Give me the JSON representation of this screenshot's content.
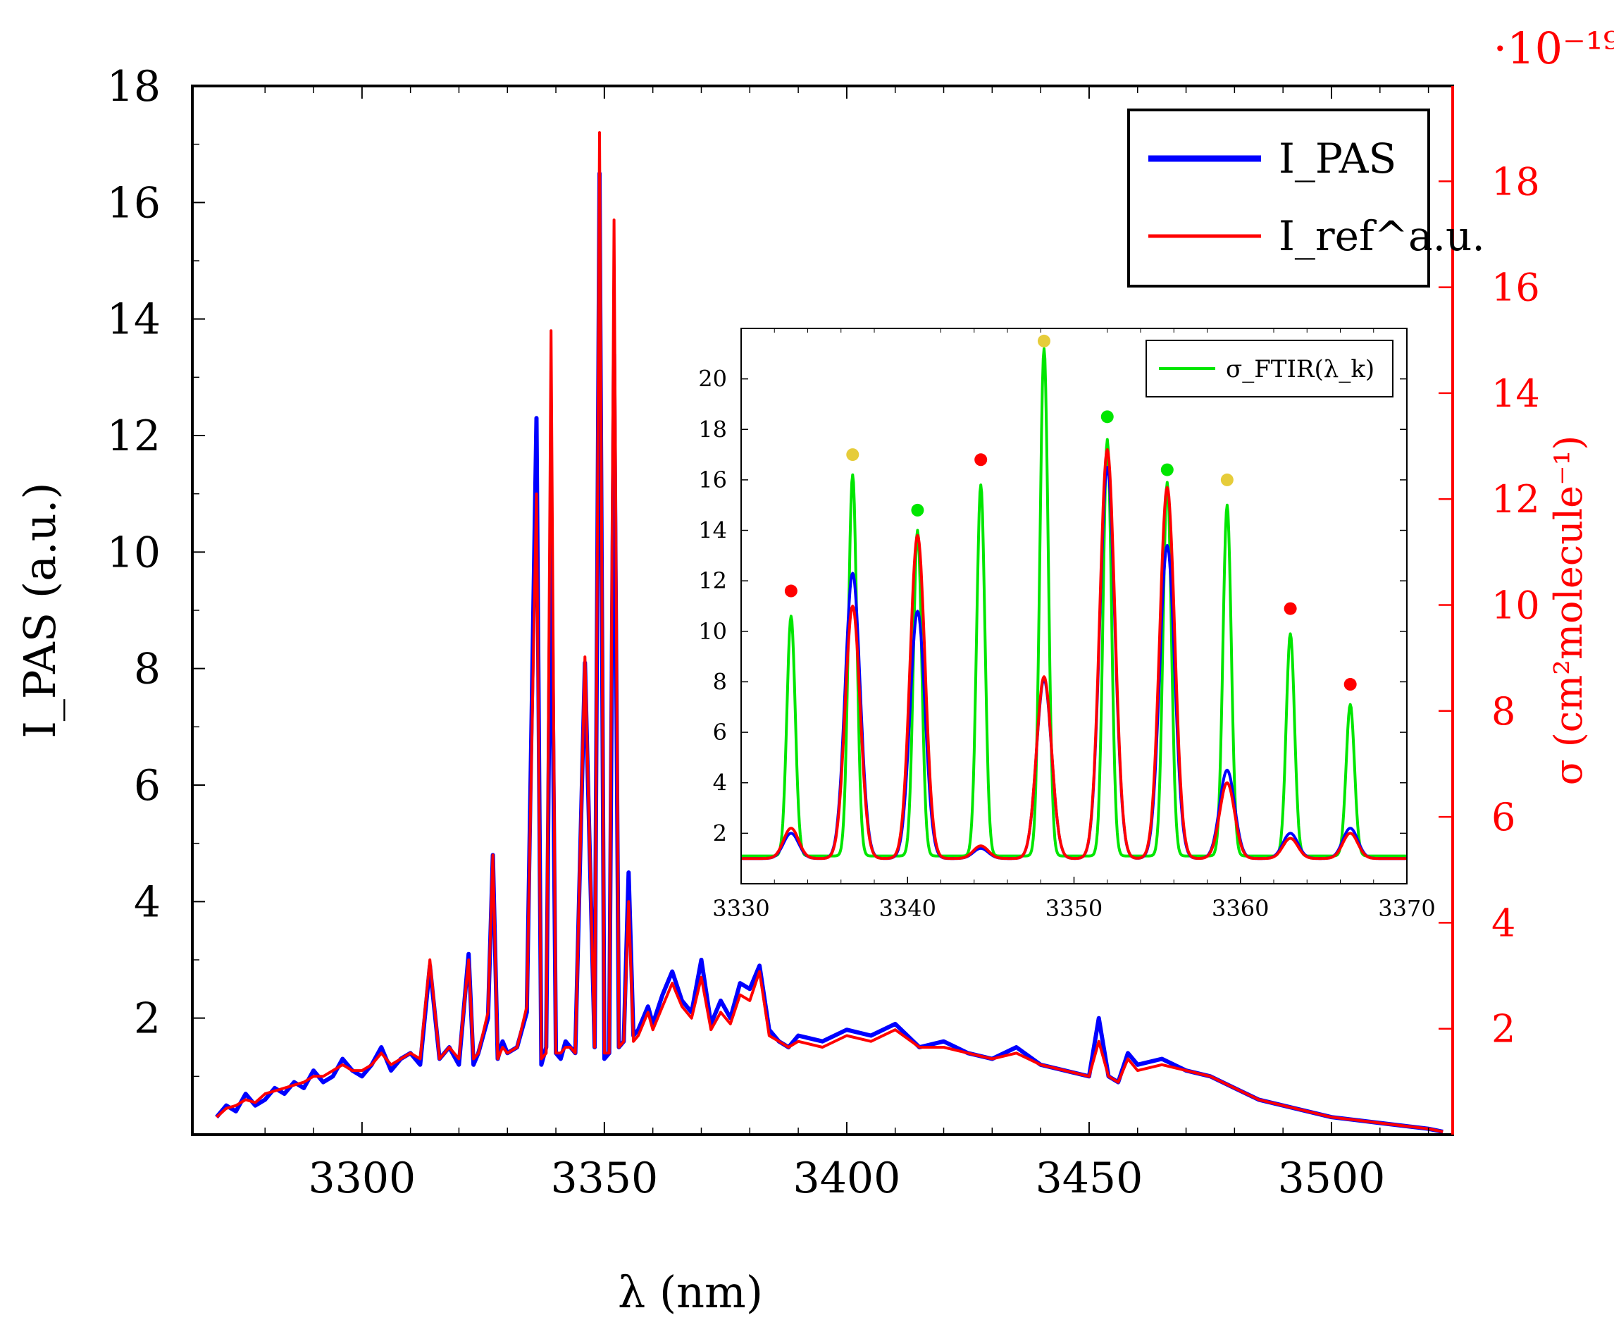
{
  "chart_data": [
    {
      "id": "main",
      "type": "line",
      "xlabel": "λ (nm)",
      "ylabel": "I_PAS (a.u.)",
      "ylabel_right": "σ (cm²molecule⁻¹)",
      "ylabel_right_multiplier": "·10⁻¹⁹",
      "xlim": [
        3265,
        3525
      ],
      "ylim": [
        0,
        18
      ],
      "ylim_right": [
        0,
        19.8
      ],
      "x_ticks": [
        3300,
        3350,
        3400,
        3450,
        3500
      ],
      "y_ticks": [
        2,
        4,
        6,
        8,
        10,
        12,
        14,
        16,
        18
      ],
      "y_right_ticks": [
        2,
        4,
        6,
        8,
        10,
        12,
        14,
        16,
        18
      ],
      "right_axis_color": "#ff0000",
      "legend": {
        "position": "top-right",
        "entries": [
          {
            "name": "I_PAS",
            "color": "#0000ff"
          },
          {
            "name": "I_ref^a.u.",
            "color": "#ff0000"
          }
        ]
      },
      "series": [
        {
          "name": "I_PAS",
          "color": "#0000ff",
          "x": [
            3270,
            3272,
            3274,
            3276,
            3278,
            3280,
            3282,
            3284,
            3286,
            3288,
            3290,
            3292,
            3294,
            3296,
            3298,
            3300,
            3302,
            3304,
            3306,
            3308,
            3310,
            3312,
            3314,
            3316,
            3318,
            3320,
            3322,
            3323,
            3324,
            3326,
            3327,
            3328,
            3329,
            3330,
            3332,
            3334,
            3336,
            3337,
            3338,
            3339,
            3340,
            3341,
            3342,
            3343,
            3344,
            3346,
            3348,
            3349,
            3350,
            3351,
            3352,
            3353,
            3354,
            3355,
            3356,
            3357,
            3358,
            3359,
            3360,
            3362,
            3364,
            3366,
            3368,
            3370,
            3372,
            3374,
            3376,
            3378,
            3380,
            3382,
            3384,
            3386,
            3388,
            3390,
            3395,
            3400,
            3405,
            3410,
            3415,
            3420,
            3425,
            3430,
            3435,
            3440,
            3445,
            3450,
            3452,
            3454,
            3456,
            3458,
            3460,
            3465,
            3470,
            3475,
            3480,
            3485,
            3490,
            3495,
            3500,
            3505,
            3510,
            3515,
            3520,
            3523
          ],
          "y": [
            0.3,
            0.5,
            0.4,
            0.7,
            0.5,
            0.6,
            0.8,
            0.7,
            0.9,
            0.8,
            1.1,
            0.9,
            1.0,
            1.3,
            1.1,
            1.0,
            1.2,
            1.5,
            1.1,
            1.3,
            1.4,
            1.2,
            2.9,
            1.3,
            1.5,
            1.2,
            3.1,
            1.2,
            1.4,
            2.0,
            4.8,
            1.3,
            1.6,
            1.4,
            1.5,
            2.1,
            12.3,
            1.2,
            1.5,
            10.8,
            1.4,
            1.3,
            1.6,
            1.5,
            1.4,
            8.1,
            1.5,
            16.5,
            1.3,
            1.4,
            13.4,
            1.5,
            1.6,
            4.5,
            1.7,
            1.8,
            2.0,
            2.2,
            1.9,
            2.4,
            2.8,
            2.3,
            2.1,
            3.0,
            1.9,
            2.3,
            2.0,
            2.6,
            2.5,
            2.9,
            1.8,
            1.6,
            1.5,
            1.7,
            1.6,
            1.8,
            1.7,
            1.9,
            1.5,
            1.6,
            1.4,
            1.3,
            1.5,
            1.2,
            1.1,
            1.0,
            2.0,
            1.0,
            0.9,
            1.4,
            1.2,
            1.3,
            1.1,
            1.0,
            0.8,
            0.6,
            0.5,
            0.4,
            0.3,
            0.25,
            0.2,
            0.15,
            0.1,
            0.05
          ]
        },
        {
          "name": "I_ref^a.u.",
          "color": "#ff0000",
          "x": [
            3270,
            3272,
            3274,
            3276,
            3278,
            3280,
            3282,
            3284,
            3286,
            3288,
            3290,
            3292,
            3294,
            3296,
            3298,
            3300,
            3302,
            3304,
            3306,
            3308,
            3310,
            3312,
            3314,
            3316,
            3318,
            3320,
            3322,
            3323,
            3324,
            3326,
            3327,
            3328,
            3329,
            3330,
            3332,
            3334,
            3336,
            3337,
            3338,
            3339,
            3340,
            3341,
            3342,
            3343,
            3344,
            3346,
            3348,
            3349,
            3350,
            3351,
            3352,
            3353,
            3354,
            3355,
            3356,
            3357,
            3358,
            3359,
            3360,
            3362,
            3364,
            3366,
            3368,
            3370,
            3372,
            3374,
            3376,
            3378,
            3380,
            3382,
            3384,
            3386,
            3388,
            3390,
            3395,
            3400,
            3405,
            3410,
            3415,
            3420,
            3425,
            3430,
            3435,
            3440,
            3445,
            3450,
            3452,
            3454,
            3456,
            3458,
            3460,
            3465,
            3470,
            3475,
            3480,
            3485,
            3490,
            3495,
            3500,
            3505,
            3510,
            3515,
            3520,
            3523
          ],
          "y": [
            0.3,
            0.45,
            0.5,
            0.6,
            0.55,
            0.7,
            0.75,
            0.8,
            0.85,
            0.9,
            1.0,
            1.0,
            1.1,
            1.2,
            1.1,
            1.1,
            1.2,
            1.4,
            1.2,
            1.3,
            1.4,
            1.3,
            3.0,
            1.3,
            1.5,
            1.3,
            3.0,
            1.3,
            1.4,
            2.1,
            4.8,
            1.3,
            1.5,
            1.4,
            1.5,
            2.2,
            11.0,
            1.3,
            1.4,
            13.8,
            1.4,
            1.4,
            1.5,
            1.5,
            1.4,
            8.2,
            1.5,
            17.2,
            1.4,
            1.4,
            15.7,
            1.5,
            1.6,
            4.0,
            1.6,
            1.7,
            1.9,
            2.1,
            1.8,
            2.2,
            2.6,
            2.2,
            2.0,
            2.7,
            1.8,
            2.1,
            1.9,
            2.4,
            2.3,
            2.8,
            1.7,
            1.6,
            1.5,
            1.6,
            1.5,
            1.7,
            1.6,
            1.8,
            1.5,
            1.5,
            1.4,
            1.3,
            1.4,
            1.2,
            1.1,
            1.0,
            1.6,
            1.0,
            0.9,
            1.3,
            1.1,
            1.2,
            1.1,
            1.0,
            0.8,
            0.6,
            0.5,
            0.4,
            0.3,
            0.25,
            0.2,
            0.15,
            0.1,
            0.05
          ]
        }
      ]
    },
    {
      "id": "inset",
      "type": "line",
      "xlim": [
        3330,
        3370
      ],
      "ylim": [
        0,
        22
      ],
      "x_ticks": [
        3330,
        3340,
        3350,
        3360,
        3370
      ],
      "y_ticks": [
        2,
        4,
        6,
        8,
        10,
        12,
        14,
        16,
        18,
        20
      ],
      "legend": {
        "position": "top-right",
        "entries": [
          {
            "name": "σ_FTIR(λ_k)",
            "color": "#00e600"
          }
        ]
      },
      "peak_x": [
        3333,
        3336.7,
        3340.6,
        3344.4,
        3348.2,
        3352,
        3355.6,
        3359.2,
        3363,
        3366.6
      ],
      "series": [
        {
          "name": "σ_FTIR(λ_k)",
          "color": "#00e600",
          "baseline": 1.1,
          "heights": [
            10.6,
            16.2,
            14.0,
            15.8,
            21.2,
            17.6,
            15.9,
            15.0,
            9.9,
            7.1
          ],
          "width": 0.25
        },
        {
          "name": "I_PAS",
          "color": "#0000ff",
          "baseline": 1.0,
          "heights": [
            2.0,
            12.3,
            10.8,
            1.4,
            8.1,
            16.5,
            13.4,
            4.5,
            2.0,
            2.2
          ],
          "width": 0.45
        },
        {
          "name": "I_ref^a.u.",
          "color": "#ff0000",
          "baseline": 1.0,
          "heights": [
            2.2,
            11.0,
            13.8,
            1.5,
            8.2,
            17.2,
            15.7,
            4.0,
            1.8,
            2.0
          ],
          "width": 0.45
        }
      ],
      "markers": [
        {
          "x": 3333,
          "y": 11.6,
          "color": "#ff0000"
        },
        {
          "x": 3336.7,
          "y": 17.0,
          "color": "#e6cc3a"
        },
        {
          "x": 3340.6,
          "y": 14.8,
          "color": "#00e600"
        },
        {
          "x": 3344.4,
          "y": 16.8,
          "color": "#ff0000"
        },
        {
          "x": 3348.2,
          "y": 21.5,
          "color": "#e6cc3a"
        },
        {
          "x": 3352,
          "y": 18.5,
          "color": "#00e600"
        },
        {
          "x": 3355.6,
          "y": 16.4,
          "color": "#00e600"
        },
        {
          "x": 3359.2,
          "y": 16.0,
          "color": "#e6cc3a"
        },
        {
          "x": 3363,
          "y": 10.9,
          "color": "#ff0000"
        },
        {
          "x": 3366.6,
          "y": 7.9,
          "color": "#ff0000"
        }
      ]
    }
  ]
}
